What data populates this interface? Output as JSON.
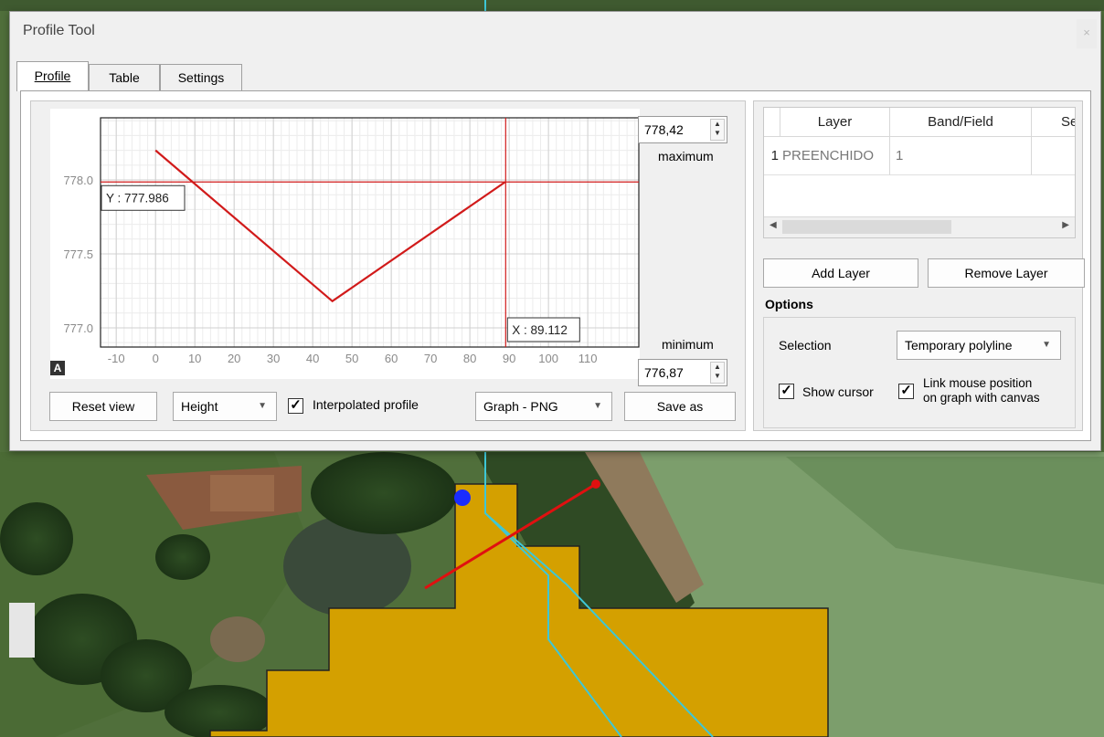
{
  "window": {
    "title": "Profile Tool",
    "close_label": "×"
  },
  "tabs": [
    {
      "label": "Profile",
      "active": true
    },
    {
      "label": "Table"
    },
    {
      "label": "Settings"
    }
  ],
  "chart_data": {
    "type": "line",
    "x": [
      0,
      45,
      89
    ],
    "y": [
      778.2,
      777.18,
      777.986
    ],
    "xlim": [
      -14,
      123
    ],
    "ylim": [
      776.87,
      778.42
    ],
    "xticks": [
      -10,
      0,
      10,
      20,
      30,
      40,
      50,
      60,
      70,
      80,
      90,
      100,
      110
    ],
    "yticks": [
      "777.0",
      "777.5",
      "778.0"
    ],
    "ytick_values": [
      777.0,
      777.5,
      778.0
    ],
    "cursor": {
      "x": 89.112,
      "y": 777.986,
      "x_label": "X : 89.112",
      "y_label": "Y : 777.986"
    },
    "line_color": "#d11a1a",
    "grid": true
  },
  "autoscale_icon": "A",
  "axis_range": {
    "max_value": "778,42",
    "max_label": "maximum",
    "min_label": "minimum",
    "min_value": "776,87"
  },
  "bottom_bar": {
    "reset": "Reset view",
    "mode": "Height",
    "interpolated_label": "Interpolated profile",
    "interpolated_checked": true,
    "export_format": "Graph - PNG",
    "save": "Save as"
  },
  "layers_table": {
    "headers": [
      "Layer",
      "Band/Field",
      "Sear"
    ],
    "rows": [
      {
        "num": "1",
        "layer": "PREENCHIDO",
        "band": "1"
      }
    ]
  },
  "layer_buttons": {
    "add": "Add Layer",
    "remove": "Remove Layer"
  },
  "options": {
    "title": "Options",
    "selection_label": "Selection",
    "selection_value": "Temporary polyline",
    "show_cursor": "Show cursor",
    "link_mouse": "Link mouse position on graph with canvas",
    "link_mouse_line1": "Link mouse position",
    "link_mouse_line2": "on graph with canvas"
  }
}
